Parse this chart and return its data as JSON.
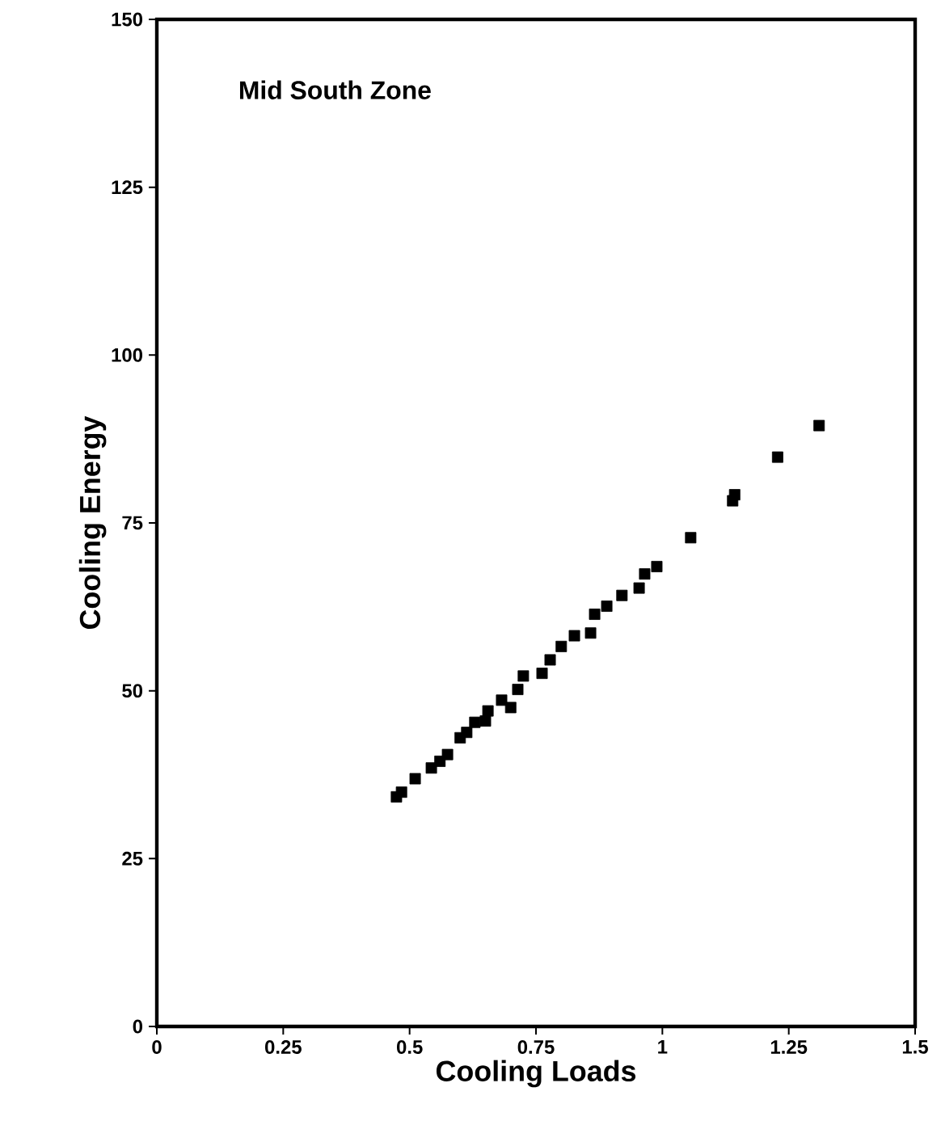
{
  "chart_data": {
    "type": "scatter",
    "title": "Mid South Zone",
    "xlabel": "Cooling Loads",
    "ylabel": "Cooling Energy",
    "xlim": [
      0,
      1.5
    ],
    "xticks": [
      0,
      0.25,
      0.5,
      0.75,
      1,
      1.25,
      1.5
    ],
    "ylim": [
      0,
      150
    ],
    "yticks": [
      0,
      25,
      50,
      75,
      100,
      125,
      150
    ],
    "marker": "square",
    "grid": false,
    "series": [
      {
        "color": "#000000",
        "x": [
          0.474,
          0.484,
          0.511,
          0.543,
          0.56,
          0.575,
          0.6,
          0.613,
          0.629,
          0.65,
          0.655,
          0.682,
          0.7,
          0.714,
          0.725,
          0.762,
          0.778,
          0.8,
          0.826,
          0.858,
          0.866,
          0.89,
          0.92,
          0.954,
          0.965,
          0.989,
          1.056,
          1.139,
          1.143,
          1.228,
          1.31
        ],
        "values": [
          34.2,
          34.9,
          36.9,
          38.5,
          39.5,
          40.5,
          43,
          43.8,
          45.3,
          45.5,
          47,
          48.6,
          47.5,
          50.2,
          52.2,
          52.6,
          54.6,
          56.6,
          58.2,
          58.6,
          61.4,
          62.6,
          64.2,
          65.3,
          67.4,
          68.5,
          72.8,
          78.3,
          79.2,
          84.8,
          89.5
        ]
      }
    ]
  }
}
